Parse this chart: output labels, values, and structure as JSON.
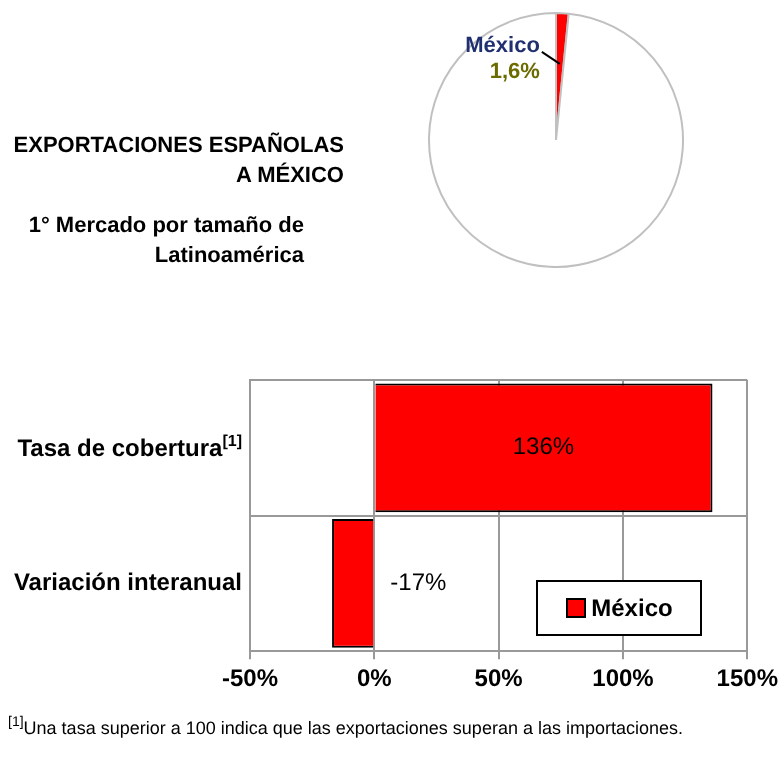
{
  "chart_data": [
    {
      "type": "pie",
      "title": "EXPORTACIONES ESPAÑOLAS A MÉXICO",
      "subtitle": "1° Mercado por tamaño de Latinoamérica",
      "categories": [
        "México",
        null
      ],
      "values": [
        1.6,
        98.4
      ],
      "colors": [
        "#ff0000",
        "#ffffff"
      ],
      "value_labels": [
        "1,6%",
        null
      ]
    },
    {
      "type": "bar",
      "orientation": "horizontal",
      "categories": [
        "Tasa de cobertura$^{[1]}$",
        "Variación interanual"
      ],
      "series": [
        {
          "name": "México",
          "color": "#ff0000",
          "values": [
            136,
            -17
          ],
          "value_labels": [
            "136%",
            "-17%"
          ]
        }
      ],
      "xlim": [
        -50,
        150
      ],
      "xticks": [
        {
          "value": -50,
          "label": "-50%"
        },
        {
          "value": 0,
          "label": "0%"
        },
        {
          "value": 50,
          "label": "50%"
        },
        {
          "value": 100,
          "label": "100%"
        },
        {
          "value": 150,
          "label": "150%"
        }
      ],
      "grid": true,
      "legend": "bottom right",
      "annotations": [
        "$^{[1]}$Una tasa superior a 100 indica que las exportaciones superan a las importaciones."
      ]
    }
  ]
}
